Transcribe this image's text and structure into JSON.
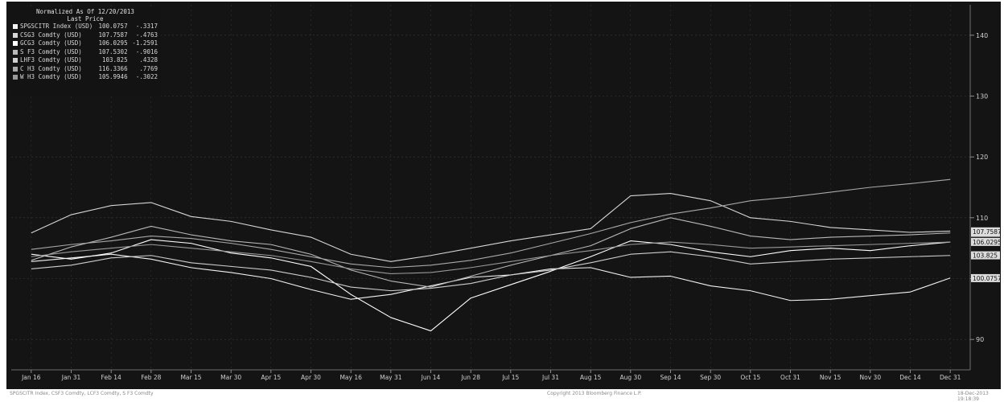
{
  "footer": {
    "left": "SPGSCITR Index, CSF3 Comdty, LCF3 Comdty, S F3 Comdty",
    "center": "Copyright 2013 Bloomberg Finance L.P.",
    "right": "18-Dec-2013 19:18:39"
  },
  "colors": {
    "background": "#141414",
    "grid": "#3a3a3a",
    "text": "#d0d0d0",
    "series": [
      "#f2f2f2",
      "#d6d6d6",
      "#ffffff",
      "#b8b8b8",
      "#cfcfcf",
      "#a9a9a9",
      "#9a9a9a"
    ]
  },
  "chart_data": {
    "type": "line",
    "title": "Normalized As Of 12/20/2013",
    "subtitle": "Last Price",
    "ylim": [
      85,
      145
    ],
    "grid": true,
    "legend_position": "top-left",
    "x_ticks": [
      "Jan 16",
      "Jan 31",
      "Feb 14",
      "Feb 28",
      "Mar 15",
      "Mar 30",
      "Apr 15",
      "Apr 30",
      "May 16",
      "May 31",
      "Jun 14",
      "Jun 28",
      "Jul 15",
      "Jul 31",
      "Aug 15",
      "Aug 30",
      "Sep 14",
      "Sep 30",
      "Oct 15",
      "Oct 31",
      "Nov 15",
      "Nov 30",
      "Dec 14",
      "Dec 31"
    ],
    "y_ticks": [
      90,
      100,
      110,
      120,
      130,
      140
    ],
    "end_labels": [
      "107.5302",
      "107.7587",
      "106.0295",
      "103.825",
      "100.0757"
    ],
    "series": [
      {
        "name": "SPGSCITR Index (USD)",
        "last": "100.0757",
        "change": "-.3317",
        "values": [
          102.8,
          103.4,
          104.0,
          103.2,
          101.8,
          101.0,
          100.0,
          98.2,
          96.6,
          97.4,
          98.8,
          100.2,
          100.6,
          101.6,
          101.8,
          100.2,
          100.4,
          98.8,
          98.0,
          96.4,
          96.6,
          97.2,
          97.8,
          100.1
        ]
      },
      {
        "name": "CSG3 Comdty (USD)",
        "last": "107.7587",
        "change": "-.4763",
        "values": [
          107.5,
          110.5,
          112.0,
          112.5,
          110.2,
          109.4,
          108.0,
          106.8,
          104.0,
          102.8,
          103.8,
          105.0,
          106.2,
          107.2,
          108.2,
          113.6,
          114.0,
          112.8,
          110.0,
          109.4,
          108.4,
          108.0,
          107.6,
          107.8
        ]
      },
      {
        "name": "GCG3 Comdty (USD)",
        "last": "106.0295",
        "change": "-1.2591",
        "values": [
          104.0,
          103.2,
          104.2,
          106.4,
          105.8,
          104.2,
          103.4,
          102.0,
          97.4,
          93.6,
          91.4,
          96.8,
          99.0,
          101.2,
          103.6,
          106.2,
          105.6,
          104.4,
          103.6,
          104.6,
          105.0,
          104.6,
          105.4,
          106.0
        ]
      },
      {
        "name": "S F3 Comdty (USD)",
        "last": "107.5302",
        "change": "-.9016",
        "values": [
          103.0,
          105.2,
          106.8,
          108.6,
          107.2,
          106.2,
          105.6,
          104.0,
          101.4,
          99.6,
          98.6,
          100.4,
          102.2,
          103.8,
          105.4,
          108.2,
          110.0,
          108.6,
          107.0,
          106.4,
          106.8,
          107.0,
          107.2,
          107.5
        ]
      },
      {
        "name": "LHF3 Comdty (USD)",
        "last": "103.825",
        "change": ".4328",
        "values": [
          101.6,
          102.2,
          103.4,
          103.8,
          102.6,
          102.0,
          101.4,
          100.2,
          98.6,
          98.0,
          98.4,
          99.2,
          100.6,
          101.4,
          102.6,
          104.0,
          104.4,
          103.6,
          102.4,
          102.8,
          103.2,
          103.4,
          103.6,
          103.8
        ]
      },
      {
        "name": "C H3 Comdty (USD)",
        "last": "116.3366",
        "change": ".7769",
        "values": [
          104.8,
          105.6,
          106.2,
          107.0,
          106.6,
          105.8,
          104.8,
          103.6,
          102.4,
          101.8,
          102.2,
          103.0,
          104.2,
          105.8,
          107.4,
          109.2,
          110.6,
          111.6,
          112.8,
          113.4,
          114.2,
          115.0,
          115.6,
          116.3
        ]
      },
      {
        "name": "W H3 Comdty (USD)",
        "last": "105.9946",
        "change": "-.3022",
        "values": [
          103.6,
          104.4,
          105.0,
          105.6,
          105.0,
          104.4,
          103.8,
          102.8,
          101.6,
          100.8,
          101.0,
          101.8,
          102.8,
          103.8,
          104.6,
          105.6,
          106.0,
          105.6,
          105.0,
          105.2,
          105.4,
          105.6,
          105.8,
          106.0
        ]
      }
    ]
  }
}
